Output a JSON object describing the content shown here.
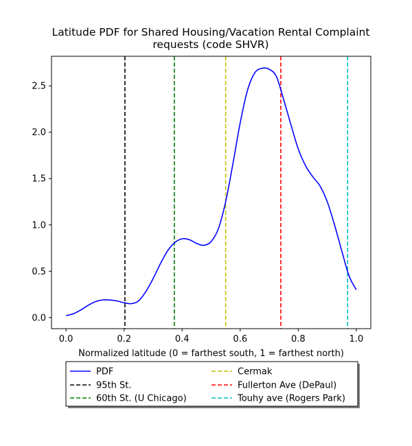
{
  "chart_data": {
    "type": "line",
    "title": "Latitude PDF for Shared Housing/Vacation Rental Complaint\nrequests (code SHVR)",
    "xlabel": "Normalized latitude (0 = farthest south, 1 = farthest north)",
    "ylabel": "",
    "xlim": [
      -0.05,
      1.05
    ],
    "ylim": [
      -0.12,
      2.82
    ],
    "xticks": [
      0.0,
      0.2,
      0.4,
      0.6,
      0.8,
      1.0
    ],
    "xtick_labels": [
      "0.0",
      "0.2",
      "0.4",
      "0.6",
      "0.8",
      "1.0"
    ],
    "yticks": [
      0.0,
      0.5,
      1.0,
      1.5,
      2.0,
      2.5
    ],
    "ytick_labels": [
      "0.0",
      "0.5",
      "1.0",
      "1.5",
      "2.0",
      "2.5"
    ],
    "grid": false,
    "legend_position": "below-center",
    "series": [
      {
        "name": "PDF",
        "color": "#0000ff",
        "style": "solid",
        "x": [
          0.0,
          0.025,
          0.05,
          0.075,
          0.1,
          0.125,
          0.15,
          0.175,
          0.2,
          0.225,
          0.25,
          0.275,
          0.3,
          0.325,
          0.35,
          0.375,
          0.4,
          0.425,
          0.45,
          0.475,
          0.5,
          0.525,
          0.55,
          0.575,
          0.6,
          0.625,
          0.65,
          0.675,
          0.7,
          0.725,
          0.75,
          0.775,
          0.8,
          0.825,
          0.85,
          0.875,
          0.9,
          0.925,
          0.95,
          0.975,
          1.0
        ],
        "y": [
          0.02,
          0.04,
          0.08,
          0.13,
          0.17,
          0.19,
          0.19,
          0.18,
          0.16,
          0.15,
          0.18,
          0.28,
          0.42,
          0.58,
          0.72,
          0.81,
          0.85,
          0.84,
          0.8,
          0.78,
          0.82,
          0.96,
          1.25,
          1.66,
          2.1,
          2.45,
          2.64,
          2.69,
          2.68,
          2.6,
          2.35,
          2.08,
          1.82,
          1.64,
          1.52,
          1.42,
          1.25,
          1.0,
          0.72,
          0.45,
          0.3
        ]
      }
    ],
    "vlines": [
      {
        "name": "95th St.",
        "x": 0.203,
        "color": "#000000",
        "style": "dashed"
      },
      {
        "name": "60th St. (U Chicago)",
        "x": 0.373,
        "color": "#008000",
        "style": "dashed"
      },
      {
        "name": "Cermak",
        "x": 0.55,
        "color": "#bfbf00",
        "style": "dashed"
      },
      {
        "name": "Fullerton Ave (DePaul)",
        "x": 0.74,
        "color": "#ff0000",
        "style": "dashed"
      },
      {
        "name": "Touhy ave (Rogers Park)",
        "x": 0.97,
        "color": "#00bfbf",
        "style": "dashed"
      }
    ]
  },
  "legend": {
    "items": [
      {
        "label": "PDF",
        "color": "#0000ff",
        "style": "solid"
      },
      {
        "label": "95th St.",
        "color": "#000000",
        "style": "dashed"
      },
      {
        "label": "60th St. (U Chicago)",
        "color": "#008000",
        "style": "dashed"
      },
      {
        "label": "Cermak",
        "color": "#bfbf00",
        "style": "dashed"
      },
      {
        "label": "Fullerton Ave (DePaul)",
        "color": "#ff0000",
        "style": "dashed"
      },
      {
        "label": "Touhy ave (Rogers Park)",
        "color": "#00bfbf",
        "style": "dashed"
      }
    ]
  }
}
